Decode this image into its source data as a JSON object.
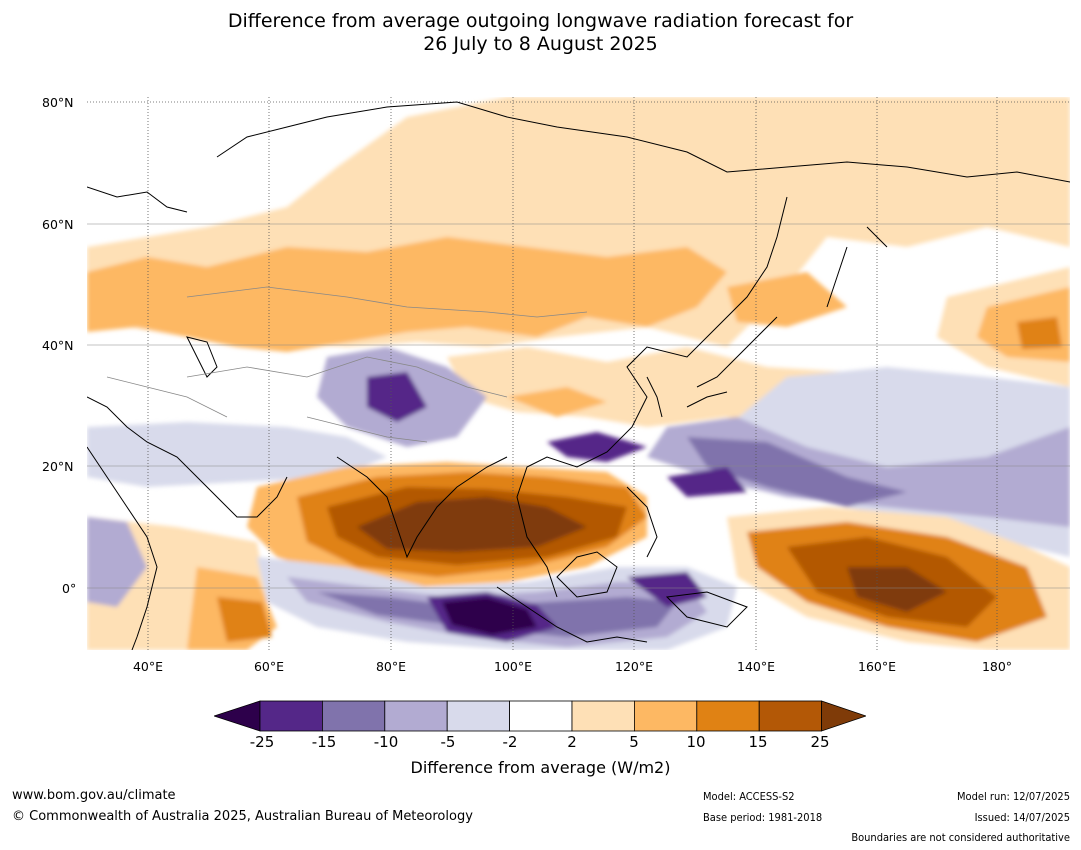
{
  "title": {
    "line1": "Difference from average outgoing longwave radiation forecast for",
    "line2": "26 July to 8 August 2025"
  },
  "map": {
    "lat_labels": [
      "80°N",
      "60°N",
      "40°N",
      "20°N",
      "0°"
    ],
    "lon_labels": [
      "40°E",
      "60°E",
      "80°E",
      "100°E",
      "120°E",
      "140°E",
      "160°E",
      "180°"
    ],
    "palette": {
      "lt_-25": "#2d004b",
      "-25_-15": "#542788",
      "-15_-10": "#8073ac",
      "-10_-5": "#b2abd2",
      "-5_-2": "#d8daeb",
      "-2_2": "#ffffff",
      "2_5": "#fee0b6",
      "5_10": "#fdb863",
      "10_15": "#e08214",
      "15_25": "#b35806",
      "gt_25": "#7f3b08"
    },
    "land_outline_color": "#000000",
    "border_color": "#888888"
  },
  "colorbar": {
    "ticks": [
      "-25",
      "-15",
      "-10",
      "-5",
      "-2",
      "2",
      "5",
      "10",
      "15",
      "25"
    ],
    "label": "Difference from average (W/m2)"
  },
  "footer": {
    "website": "www.bom.gov.au/climate",
    "copyright": "© Commonwealth of Australia 2025, Australian Bureau of Meteorology",
    "model": "Model: ACCESS-S2",
    "base_period": "Base period: 1981-2018",
    "model_run": "Model run: 12/07/2025",
    "issued": "Issued: 14/07/2025",
    "disclaimer": "Boundaries are not considered authoritative"
  }
}
